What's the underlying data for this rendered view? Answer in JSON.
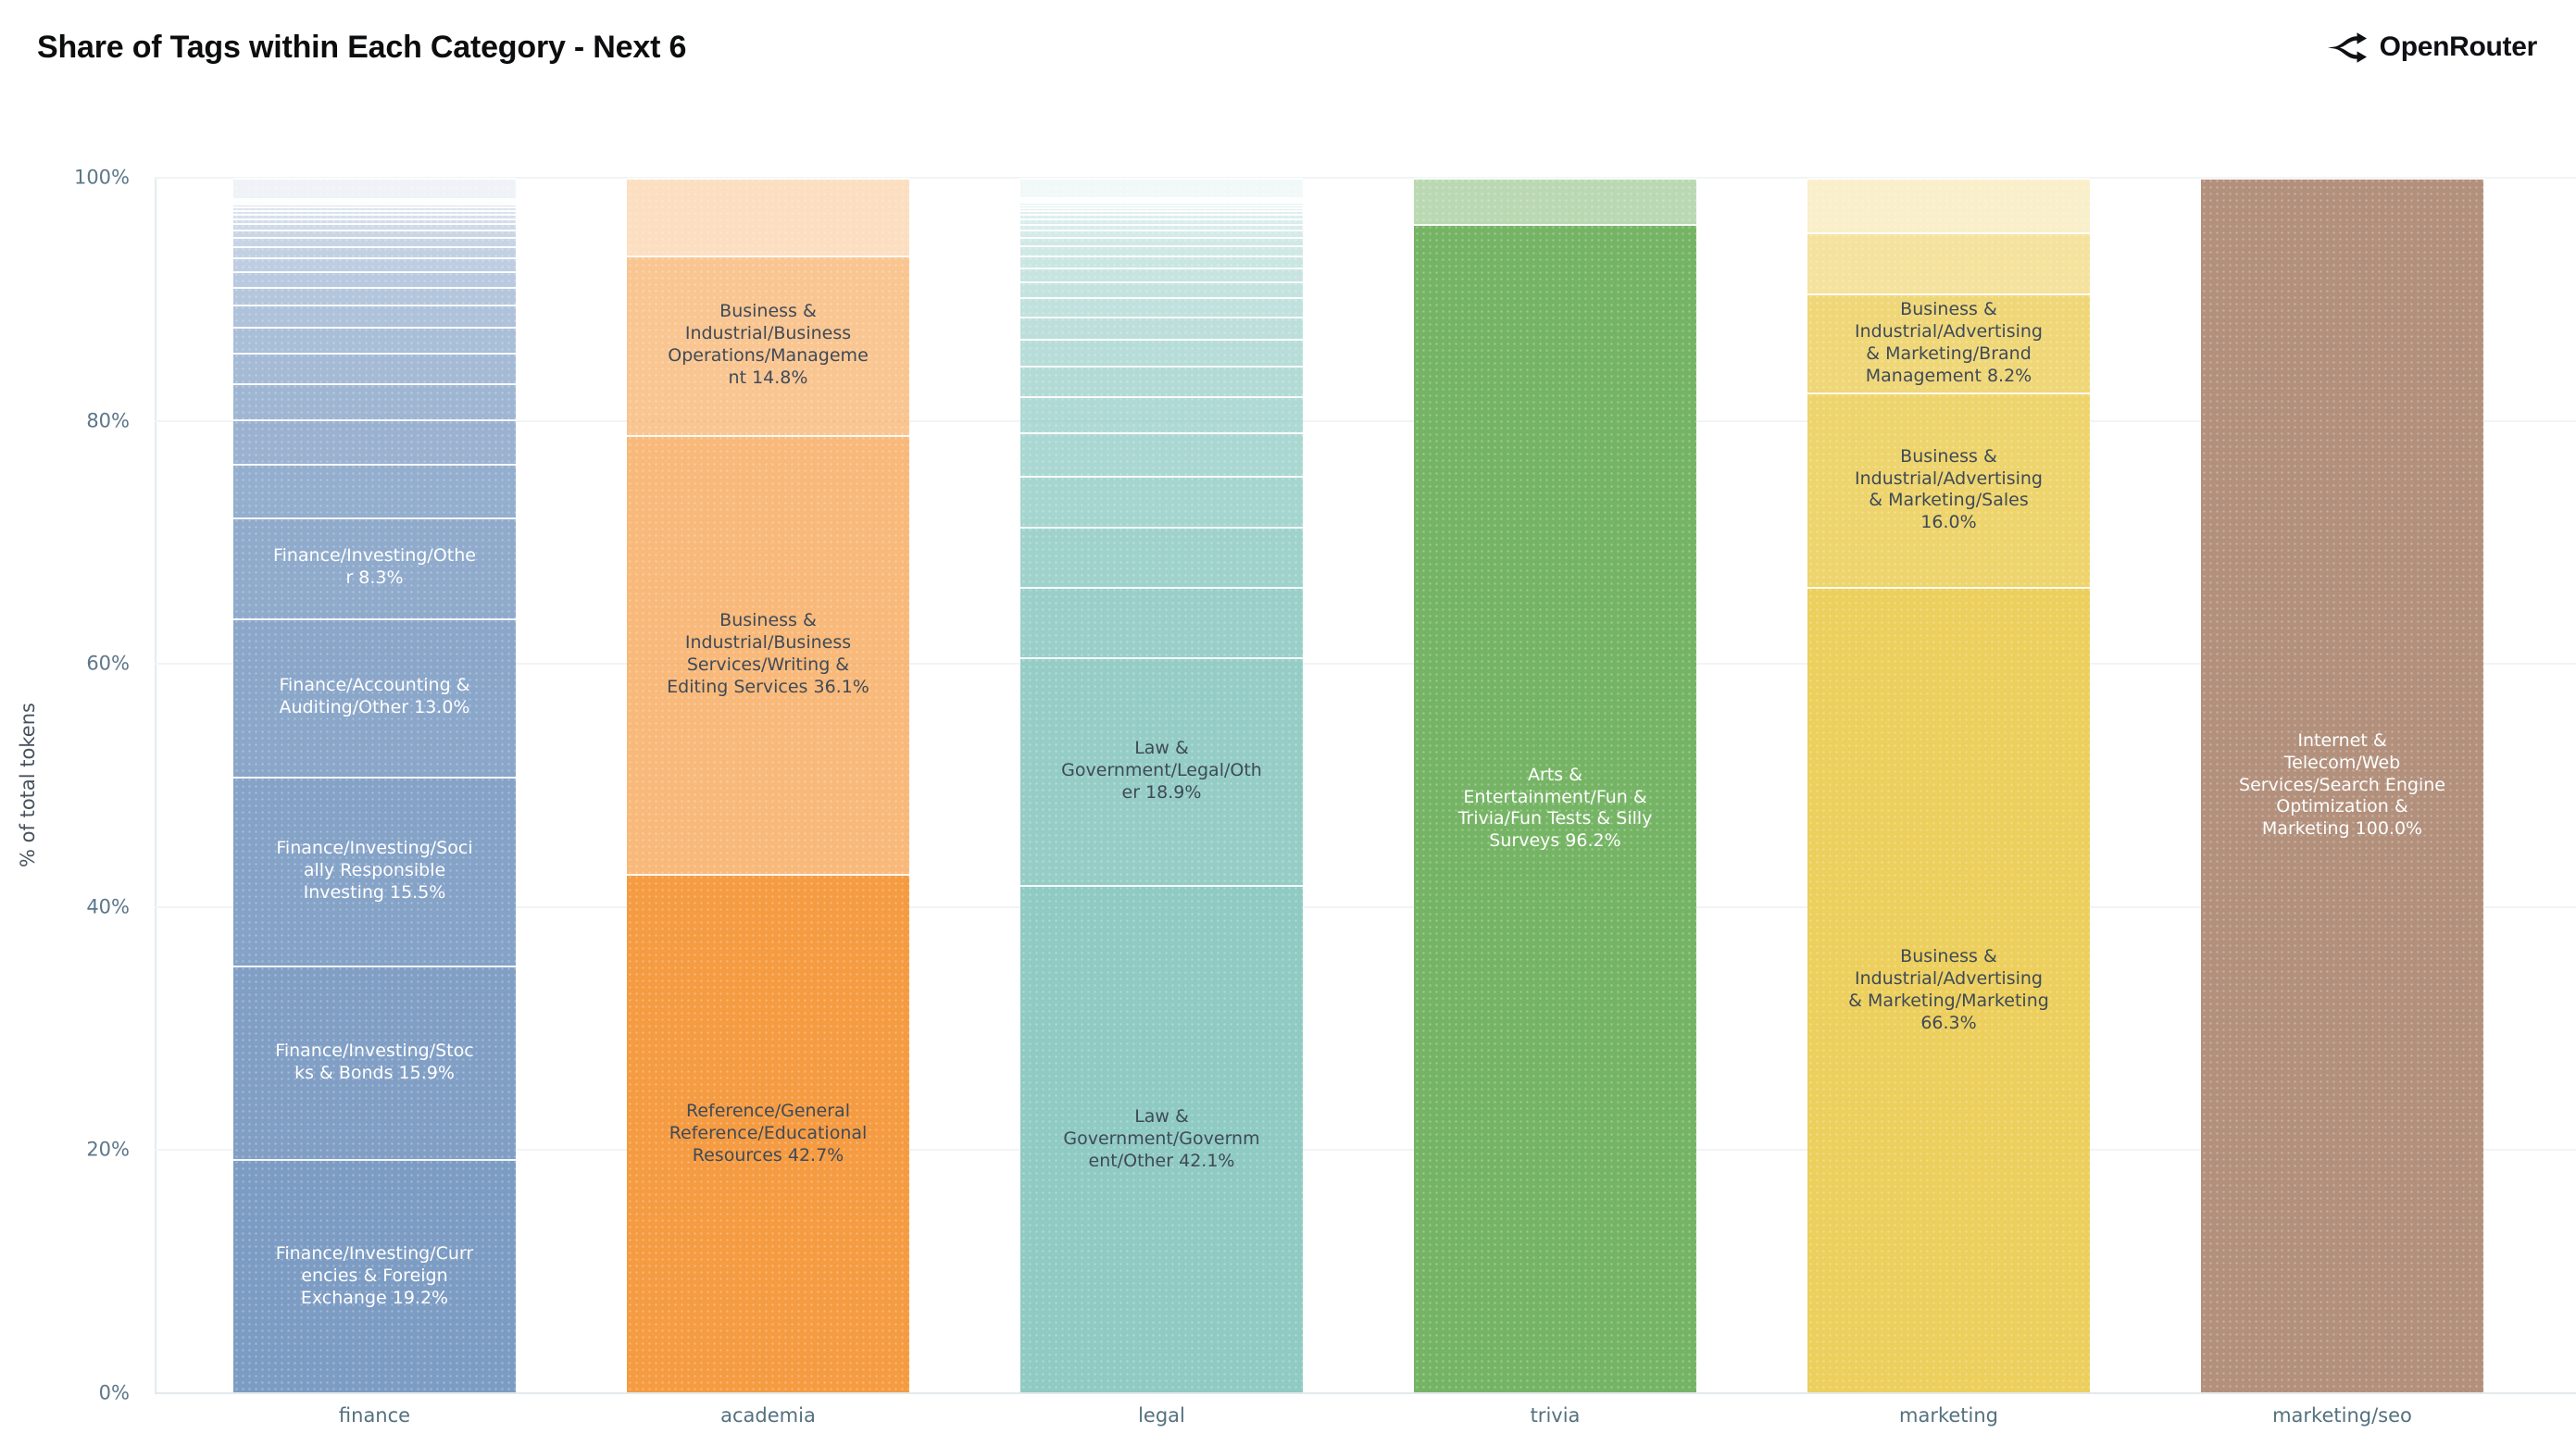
{
  "header": {
    "title": "Share of Tags within Each Category - Next 6",
    "brand": "OpenRouter"
  },
  "chart_data": {
    "type": "bar",
    "stacked": true,
    "normalized": "percent",
    "title": "Share of Tags within Each Category - Next 6",
    "xlabel": "",
    "ylabel": "% of total tokens",
    "ylim": [
      0,
      100
    ],
    "grid": true,
    "legend": false,
    "categories": [
      "finance",
      "academia",
      "legal",
      "trivia",
      "marketing",
      "marketing/seo"
    ],
    "yticks": [
      {
        "label": "0%",
        "value": 0
      },
      {
        "label": "20%",
        "value": 20
      },
      {
        "label": "40%",
        "value": 40
      },
      {
        "label": "60%",
        "value": 60
      },
      {
        "label": "80%",
        "value": 80
      },
      {
        "label": "100%",
        "value": 100
      }
    ],
    "bars": [
      {
        "category": "finance",
        "color": "#7d9cc3",
        "label_color": "#ffffff",
        "segments": [
          {
            "tag": "Finance/Investing/Currencies & Foreign Exchange",
            "pct": 19.2,
            "alpha": 1.0
          },
          {
            "tag": "Finance/Investing/Stocks & Bonds",
            "pct": 15.9,
            "alpha": 0.97
          },
          {
            "tag": "Finance/Investing/Socially Responsible Investing",
            "pct": 15.5,
            "alpha": 0.94
          },
          {
            "tag": "Finance/Accounting & Auditing/Other",
            "pct": 13.0,
            "alpha": 0.9
          },
          {
            "tag": "Finance/Investing/Other",
            "pct": 8.3,
            "alpha": 0.86
          },
          {
            "pct": 4.4,
            "alpha": 0.82
          },
          {
            "pct": 3.6,
            "alpha": 0.78
          },
          {
            "pct": 3.0,
            "alpha": 0.74
          },
          {
            "pct": 2.5,
            "alpha": 0.7
          },
          {
            "pct": 2.1,
            "alpha": 0.66
          },
          {
            "pct": 1.8,
            "alpha": 0.62
          },
          {
            "pct": 1.5,
            "alpha": 0.58
          },
          {
            "pct": 1.3,
            "alpha": 0.54
          },
          {
            "pct": 1.1,
            "alpha": 0.5
          },
          {
            "pct": 0.9,
            "alpha": 0.47
          },
          {
            "pct": 0.75,
            "alpha": 0.44
          },
          {
            "pct": 0.62,
            "alpha": 0.41
          },
          {
            "pct": 0.52,
            "alpha": 0.38
          },
          {
            "pct": 0.44,
            "alpha": 0.35
          },
          {
            "pct": 0.37,
            "alpha": 0.32
          },
          {
            "pct": 0.31,
            "alpha": 0.3
          },
          {
            "pct": 0.26,
            "alpha": 0.28
          },
          {
            "pct": 0.22,
            "alpha": 0.26
          },
          {
            "pct": 0.18,
            "alpha": 0.24
          },
          {
            "pct": 0.15,
            "alpha": 0.22
          },
          {
            "pct": 0.12,
            "alpha": 0.2
          },
          {
            "pct": 1.7,
            "alpha": 0.12
          }
        ]
      },
      {
        "category": "academia",
        "color": "#f59b42",
        "label_color": "#3f4a57",
        "segments": [
          {
            "tag": "Reference/General Reference/Educational Resources",
            "pct": 42.7,
            "alpha": 1.0
          },
          {
            "tag": "Business & Industrial/Business Services/Writing & Editing Services",
            "pct": 36.1,
            "alpha": 0.7
          },
          {
            "tag": "Business & Industrial/Business Operations/Management",
            "pct": 14.8,
            "alpha": 0.58
          },
          {
            "pct": 6.4,
            "alpha": 0.33
          }
        ]
      },
      {
        "category": "legal",
        "color": "#8fcac3",
        "label_color": "#3f4a57",
        "segments": [
          {
            "tag": "Law & Government/Government/Other",
            "pct": 42.1,
            "alpha": 1.0
          },
          {
            "tag": "Law & Government/Legal/Other",
            "pct": 18.9,
            "alpha": 0.95
          },
          {
            "pct": 5.8,
            "alpha": 0.9
          },
          {
            "pct": 5.0,
            "alpha": 0.85
          },
          {
            "pct": 4.2,
            "alpha": 0.8
          },
          {
            "pct": 3.6,
            "alpha": 0.76
          },
          {
            "pct": 3.0,
            "alpha": 0.72
          },
          {
            "pct": 2.55,
            "alpha": 0.68
          },
          {
            "pct": 2.2,
            "alpha": 0.64
          },
          {
            "pct": 1.85,
            "alpha": 0.6
          },
          {
            "pct": 1.6,
            "alpha": 0.56
          },
          {
            "pct": 1.35,
            "alpha": 0.53
          },
          {
            "pct": 1.15,
            "alpha": 0.5
          },
          {
            "pct": 0.97,
            "alpha": 0.47
          },
          {
            "pct": 0.82,
            "alpha": 0.44
          },
          {
            "pct": 0.7,
            "alpha": 0.41
          },
          {
            "pct": 0.6,
            "alpha": 0.38
          },
          {
            "pct": 0.51,
            "alpha": 0.36
          },
          {
            "pct": 0.43,
            "alpha": 0.34
          },
          {
            "pct": 0.37,
            "alpha": 0.32
          },
          {
            "pct": 0.31,
            "alpha": 0.3
          },
          {
            "pct": 0.27,
            "alpha": 0.28
          },
          {
            "pct": 0.23,
            "alpha": 0.26
          },
          {
            "pct": 0.19,
            "alpha": 0.24
          },
          {
            "pct": 0.16,
            "alpha": 0.22
          },
          {
            "pct": 0.14,
            "alpha": 0.21
          },
          {
            "pct": 0.12,
            "alpha": 0.2
          },
          {
            "pct": 1.6,
            "alpha": 0.12
          }
        ]
      },
      {
        "category": "trivia",
        "color": "#76b465",
        "label_color": "#ffffff",
        "segments": [
          {
            "tag": "Arts & Entertainment/Fun & Trivia/Fun Tests & Silly Surveys",
            "pct": 96.2,
            "alpha": 1.0
          },
          {
            "pct": 3.8,
            "alpha": 0.5
          }
        ]
      },
      {
        "category": "marketing",
        "color": "#eccf5d",
        "label_color": "#3f4a57",
        "segments": [
          {
            "tag": "Business & Industrial/Advertising & Marketing/Marketing",
            "pct": 66.3,
            "alpha": 1.0
          },
          {
            "tag": "Business & Industrial/Advertising & Marketing/Sales",
            "pct": 16.0,
            "alpha": 0.9
          },
          {
            "tag": "Business & Industrial/Advertising & Marketing/Brand Management",
            "pct": 8.2,
            "alpha": 0.83
          },
          {
            "pct": 5.0,
            "alpha": 0.6
          },
          {
            "pct": 4.5,
            "alpha": 0.33
          }
        ]
      },
      {
        "category": "marketing/seo",
        "color": "#b2907c",
        "label_color": "#ffffff",
        "segments": [
          {
            "tag": "Internet & Telecom/Web Services/Search Engine Optimization & Marketing",
            "pct": 100.0,
            "alpha": 1.0
          }
        ]
      }
    ]
  }
}
